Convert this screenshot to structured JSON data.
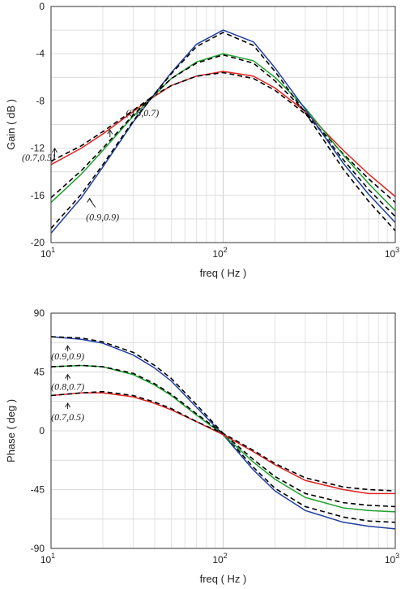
{
  "chart_data": [
    {
      "type": "line",
      "xscale": "log",
      "xlabel": "freq ( Hz )",
      "ylabel": "Gain ( dB )",
      "xlim": [
        10,
        1000
      ],
      "ylim": [
        -20,
        0
      ],
      "xtick_labels": [
        {
          "value": 10,
          "base": "10",
          "exp": "1"
        },
        {
          "value": 100,
          "base": "10",
          "exp": "2"
        },
        {
          "value": 1000,
          "base": "10",
          "exp": "3"
        }
      ],
      "yticks": [
        0,
        -4,
        -8,
        -12,
        -16,
        -20
      ],
      "grid": true,
      "series": [
        {
          "color": "#e02020",
          "dash": false,
          "x": [
            10,
            15,
            20,
            30,
            40,
            50,
            70,
            100,
            150,
            200,
            300,
            500,
            700,
            1000
          ],
          "y": [
            -13.4,
            -12.0,
            -10.8,
            -8.9,
            -7.6,
            -6.7,
            -5.9,
            -5.5,
            -5.9,
            -6.9,
            -8.9,
            -12.2,
            -14.2,
            -16.1
          ]
        },
        {
          "color": "#000000",
          "dash": true,
          "x": [
            10,
            15,
            20,
            30,
            40,
            50,
            70,
            100,
            150,
            200,
            300,
            500,
            700,
            1000
          ],
          "y": [
            -13.1,
            -11.8,
            -10.6,
            -8.8,
            -7.5,
            -6.7,
            -5.9,
            -5.6,
            -6.1,
            -7.1,
            -9.1,
            -12.5,
            -14.6,
            -16.6
          ]
        },
        {
          "color": "#1e9e2e",
          "dash": false,
          "x": [
            10,
            15,
            20,
            30,
            40,
            50,
            70,
            100,
            150,
            200,
            300,
            500,
            700,
            1000
          ],
          "y": [
            -16.6,
            -14.2,
            -12.2,
            -9.3,
            -7.5,
            -6.1,
            -4.7,
            -4.0,
            -4.6,
            -6.0,
            -8.6,
            -12.6,
            -15.0,
            -17.3
          ]
        },
        {
          "color": "#000000",
          "dash": true,
          "x": [
            10,
            15,
            20,
            30,
            40,
            50,
            70,
            100,
            150,
            200,
            300,
            500,
            700,
            1000
          ],
          "y": [
            -16.2,
            -13.9,
            -12.0,
            -9.2,
            -7.4,
            -6.1,
            -4.8,
            -4.1,
            -4.8,
            -6.3,
            -8.9,
            -13.0,
            -15.5,
            -17.8
          ]
        },
        {
          "color": "#1f3fa0",
          "dash": false,
          "x": [
            10,
            15,
            20,
            30,
            40,
            50,
            70,
            100,
            150,
            200,
            300,
            500,
            700,
            1000
          ],
          "y": [
            -19.2,
            -16.2,
            -13.6,
            -9.8,
            -7.4,
            -5.6,
            -3.2,
            -2.0,
            -3.0,
            -5.2,
            -8.7,
            -13.3,
            -15.9,
            -18.3
          ]
        },
        {
          "color": "#000000",
          "dash": true,
          "x": [
            10,
            15,
            20,
            30,
            40,
            50,
            70,
            100,
            150,
            200,
            300,
            500,
            700,
            1000
          ],
          "y": [
            -18.8,
            -15.9,
            -13.4,
            -9.7,
            -7.4,
            -5.7,
            -3.4,
            -2.2,
            -3.3,
            -5.5,
            -9.0,
            -13.8,
            -16.5,
            -19.0
          ]
        }
      ],
      "annotations": [
        {
          "text": "(0.8,0.7)",
          "x": 22,
          "y": -10.8
        },
        {
          "text": "(0.7,0.5)",
          "x": 10.5,
          "y": -12.5
        },
        {
          "text": "(0.9,0.9)",
          "x": 17.5,
          "y": -16.6
        }
      ]
    },
    {
      "type": "line",
      "xscale": "log",
      "xlabel": "freq ( Hz )",
      "ylabel": "Phase ( deg )",
      "xlim": [
        10,
        1000
      ],
      "ylim": [
        -90,
        90
      ],
      "xtick_labels": [
        {
          "value": 10,
          "base": "10",
          "exp": "1"
        },
        {
          "value": 100,
          "base": "10",
          "exp": "2"
        },
        {
          "value": 1000,
          "base": "10",
          "exp": "3"
        }
      ],
      "yticks": [
        90,
        45,
        0,
        -45,
        -90
      ],
      "grid": true,
      "series": [
        {
          "color": "#1f3fa0",
          "dash": false,
          "x": [
            10,
            15,
            20,
            30,
            40,
            50,
            70,
            100,
            150,
            200,
            300,
            500,
            700,
            1000
          ],
          "y": [
            72,
            70,
            67,
            58,
            48,
            38,
            18,
            -3,
            -30,
            -46,
            -61,
            -70,
            -73,
            -75
          ]
        },
        {
          "color": "#000000",
          "dash": true,
          "x": [
            10,
            15,
            20,
            30,
            40,
            50,
            70,
            100,
            150,
            200,
            300,
            500,
            700,
            1000
          ],
          "y": [
            72,
            71,
            68,
            60,
            50,
            40,
            20,
            -2,
            -28,
            -44,
            -58,
            -66,
            -69,
            -70
          ]
        },
        {
          "color": "#1e9e2e",
          "dash": false,
          "x": [
            10,
            15,
            20,
            30,
            40,
            50,
            70,
            100,
            150,
            200,
            300,
            500,
            700,
            1000
          ],
          "y": [
            49,
            50,
            49,
            43,
            35,
            27,
            12,
            -3,
            -24,
            -37,
            -51,
            -59,
            -61,
            -62
          ]
        },
        {
          "color": "#000000",
          "dash": true,
          "x": [
            10,
            15,
            20,
            30,
            40,
            50,
            70,
            100,
            150,
            200,
            300,
            500,
            700,
            1000
          ],
          "y": [
            49,
            50,
            49,
            44,
            36,
            28,
            13,
            -2,
            -22,
            -35,
            -48,
            -55,
            -57,
            -58
          ]
        },
        {
          "color": "#e02020",
          "dash": false,
          "x": [
            10,
            15,
            20,
            30,
            40,
            50,
            70,
            100,
            150,
            200,
            300,
            500,
            700,
            1000
          ],
          "y": [
            27,
            29,
            29,
            26,
            21,
            16,
            7,
            -3,
            -16,
            -26,
            -38,
            -45,
            -48,
            -48
          ]
        },
        {
          "color": "#000000",
          "dash": true,
          "x": [
            10,
            15,
            20,
            30,
            40,
            50,
            70,
            100,
            150,
            200,
            300,
            500,
            700,
            1000
          ],
          "y": [
            27,
            29,
            30,
            27,
            22,
            17,
            7,
            -2,
            -15,
            -25,
            -36,
            -43,
            -45,
            -46
          ]
        }
      ],
      "annotations": [
        {
          "text": "(0.9,0.9)",
          "x": 12.5,
          "y": 62
        },
        {
          "text": "(0.8,0.7)",
          "x": 12.5,
          "y": 40
        },
        {
          "text": "(0.7,0.5)",
          "x": 12.5,
          "y": 18
        }
      ]
    }
  ]
}
